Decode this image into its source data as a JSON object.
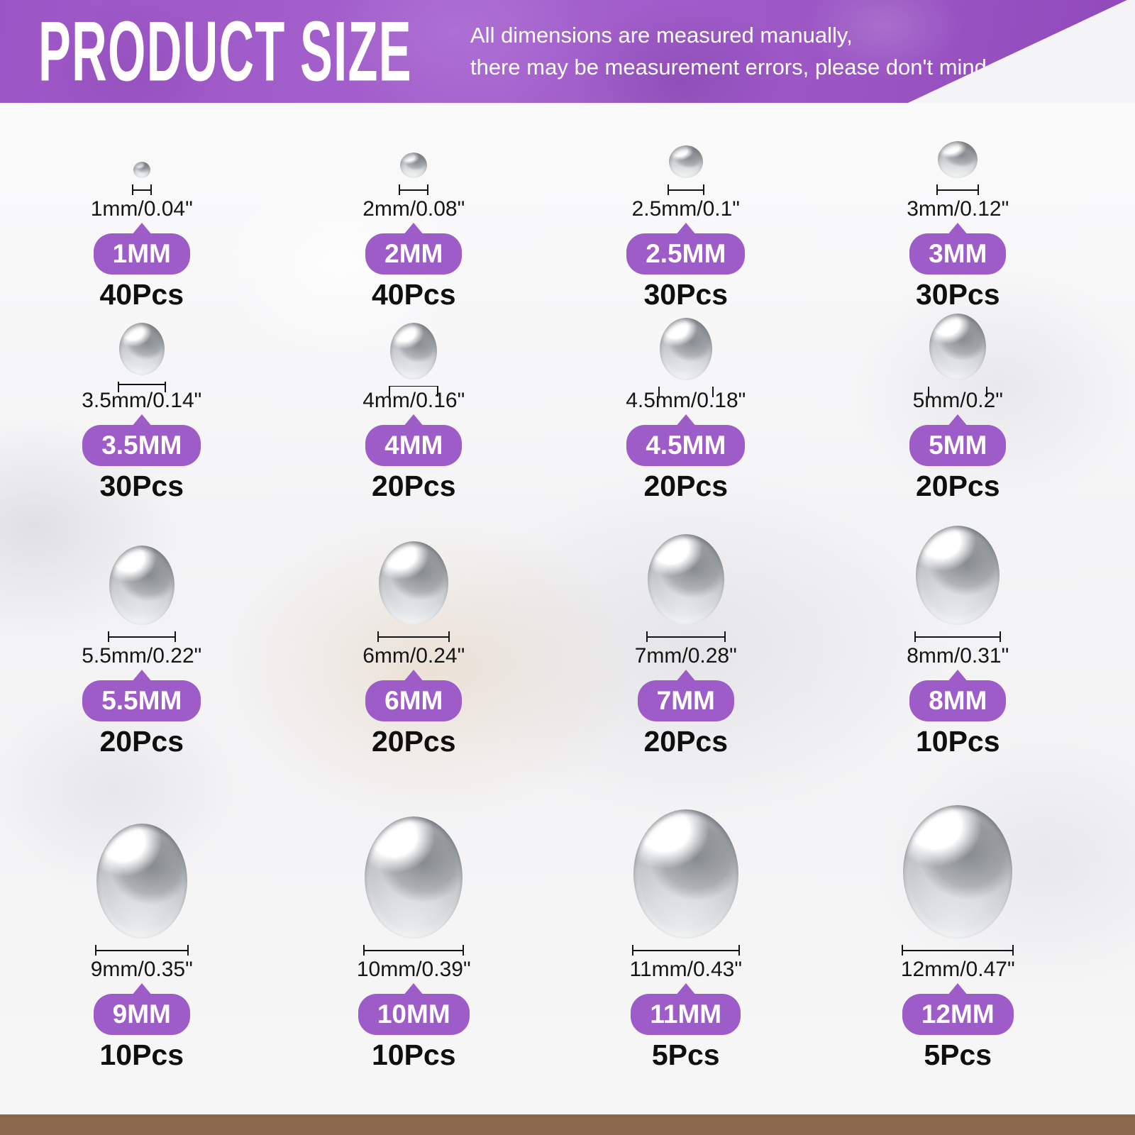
{
  "header": {
    "title": "PRODUCT SIZE",
    "note_line1": "All dimensions are measured manually,",
    "note_line2": "there may be measurement errors, please don't mind."
  },
  "colors": {
    "badge": "#9d5cc8",
    "header": "#9c55c6",
    "footer": "#8a674d"
  },
  "items": [
    {
      "size_label": "1MM",
      "dimension": "1mm/0.04\"",
      "count": "40Pcs"
    },
    {
      "size_label": "2MM",
      "dimension": "2mm/0.08\"",
      "count": "40Pcs"
    },
    {
      "size_label": "2.5MM",
      "dimension": "2.5mm/0.1\"",
      "count": "30Pcs"
    },
    {
      "size_label": "3MM",
      "dimension": "3mm/0.12\"",
      "count": "30Pcs"
    },
    {
      "size_label": "3.5MM",
      "dimension": "3.5mm/0.14\"",
      "count": "30Pcs"
    },
    {
      "size_label": "4MM",
      "dimension": "4mm/0.16\"",
      "count": "20Pcs"
    },
    {
      "size_label": "4.5MM",
      "dimension": "4.5mm/0.18\"",
      "count": "20Pcs"
    },
    {
      "size_label": "5MM",
      "dimension": "5mm/0.2\"",
      "count": "20Pcs"
    },
    {
      "size_label": "5.5MM",
      "dimension": "5.5mm/0.22\"",
      "count": "20Pcs"
    },
    {
      "size_label": "6MM",
      "dimension": "6mm/0.24\"",
      "count": "20Pcs"
    },
    {
      "size_label": "7MM",
      "dimension": "7mm/0.28\"",
      "count": "20Pcs"
    },
    {
      "size_label": "8MM",
      "dimension": "8mm/0.31\"",
      "count": "10Pcs"
    },
    {
      "size_label": "9MM",
      "dimension": "9mm/0.35\"",
      "count": "10Pcs"
    },
    {
      "size_label": "10MM",
      "dimension": "10mm/0.39\"",
      "count": "10Pcs"
    },
    {
      "size_label": "11MM",
      "dimension": "11mm/0.43\"",
      "count": "5Pcs"
    },
    {
      "size_label": "12MM",
      "dimension": "12mm/0.47\"",
      "count": "5Pcs"
    }
  ]
}
